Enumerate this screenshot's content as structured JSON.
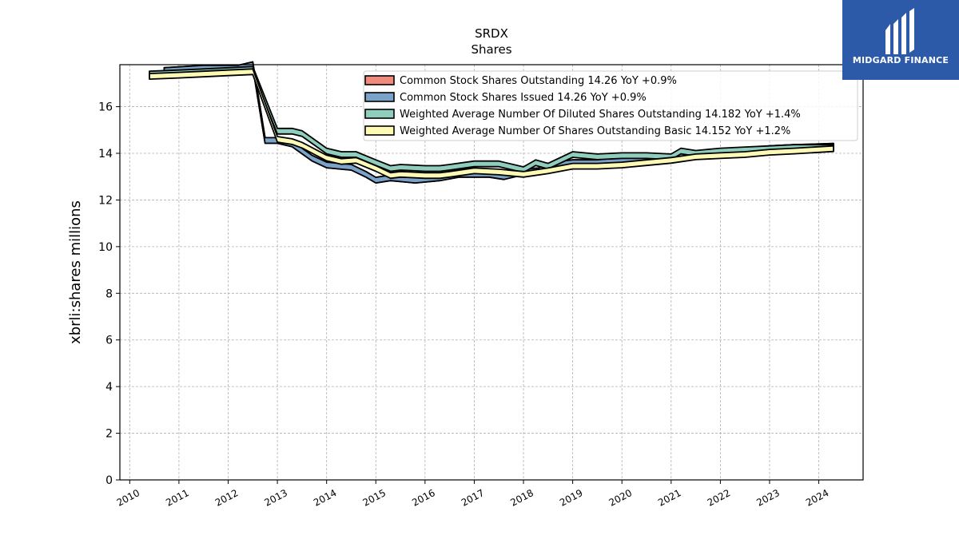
{
  "brand": {
    "name": "MIDGARD FINANCE",
    "bg": "#2d5aa8"
  },
  "chart_data": {
    "type": "area",
    "title": "SRDX",
    "subtitle": "Shares",
    "xlabel": "",
    "ylabel": "xbrli:shares millions",
    "xlim": [
      2009.8,
      2024.9
    ],
    "ylim": [
      0,
      17.8
    ],
    "x_ticks": [
      "2010",
      "2011",
      "2012",
      "2013",
      "2014",
      "2015",
      "2016",
      "2017",
      "2018",
      "2019",
      "2020",
      "2021",
      "2022",
      "2023",
      "2024"
    ],
    "y_ticks": [
      "0",
      "2",
      "4",
      "6",
      "8",
      "10",
      "12",
      "14",
      "16"
    ],
    "grid": true,
    "legend_position": "top-right",
    "series": [
      {
        "name": "Common Stock Shares Outstanding  14.26 YoY +0.9%",
        "color": "#f08a7e",
        "points": [
          [
            2010.7,
            17.55
          ],
          [
            2011.5,
            17.65
          ],
          [
            2012.2,
            17.65
          ],
          [
            2012.5,
            17.8
          ],
          [
            2012.75,
            14.55
          ],
          [
            2013.0,
            14.55
          ],
          [
            2013.3,
            14.4
          ],
          [
            2013.7,
            13.8
          ],
          [
            2014.0,
            13.5
          ],
          [
            2014.5,
            13.4
          ],
          [
            2014.8,
            13.1
          ],
          [
            2015.0,
            12.85
          ],
          [
            2015.3,
            12.95
          ],
          [
            2015.8,
            12.85
          ],
          [
            2016.3,
            12.95
          ],
          [
            2016.7,
            13.1
          ],
          [
            2017.3,
            13.1
          ],
          [
            2017.6,
            13.0
          ],
          [
            2018.0,
            13.2
          ],
          [
            2018.3,
            13.25
          ],
          [
            2018.6,
            13.5
          ],
          [
            2019.0,
            13.6
          ],
          [
            2019.5,
            13.6
          ],
          [
            2020.0,
            13.7
          ],
          [
            2020.5,
            13.75
          ],
          [
            2021.0,
            13.85
          ],
          [
            2021.5,
            13.95
          ],
          [
            2022.0,
            14.05
          ],
          [
            2022.5,
            14.1
          ],
          [
            2023.0,
            14.2
          ],
          [
            2023.5,
            14.25
          ],
          [
            2024.3,
            14.3
          ]
        ]
      },
      {
        "name": "Common Stock Shares Issued  14.26 YoY +0.9%",
        "color": "#7ba3c9",
        "points": [
          [
            2010.7,
            17.55
          ],
          [
            2011.5,
            17.65
          ],
          [
            2012.2,
            17.65
          ],
          [
            2012.5,
            17.8
          ],
          [
            2012.75,
            14.55
          ],
          [
            2013.0,
            14.55
          ],
          [
            2013.3,
            14.4
          ],
          [
            2013.7,
            13.8
          ],
          [
            2014.0,
            13.5
          ],
          [
            2014.5,
            13.4
          ],
          [
            2014.8,
            13.1
          ],
          [
            2015.0,
            12.85
          ],
          [
            2015.3,
            12.95
          ],
          [
            2015.8,
            12.85
          ],
          [
            2016.3,
            12.95
          ],
          [
            2016.7,
            13.1
          ],
          [
            2017.3,
            13.1
          ],
          [
            2017.6,
            13.0
          ],
          [
            2018.0,
            13.2
          ],
          [
            2018.3,
            13.25
          ],
          [
            2018.6,
            13.5
          ],
          [
            2019.0,
            13.6
          ],
          [
            2019.5,
            13.6
          ],
          [
            2020.0,
            13.7
          ],
          [
            2020.5,
            13.75
          ],
          [
            2021.0,
            13.85
          ],
          [
            2021.5,
            13.95
          ],
          [
            2022.0,
            14.05
          ],
          [
            2022.5,
            14.1
          ],
          [
            2023.0,
            14.2
          ],
          [
            2023.5,
            14.25
          ],
          [
            2024.3,
            14.3
          ]
        ]
      },
      {
        "name": "Weighted Average Number Of Diluted Shares Outstanding  14.182 YoY +1.4%",
        "color": "#8fcdbd",
        "points": [
          [
            2010.4,
            17.4
          ],
          [
            2011.0,
            17.45
          ],
          [
            2011.5,
            17.5
          ],
          [
            2012.0,
            17.55
          ],
          [
            2012.5,
            17.6
          ],
          [
            2013.0,
            14.95
          ],
          [
            2013.3,
            14.95
          ],
          [
            2013.5,
            14.85
          ],
          [
            2014.0,
            14.1
          ],
          [
            2014.3,
            13.95
          ],
          [
            2014.6,
            13.95
          ],
          [
            2015.0,
            13.6
          ],
          [
            2015.3,
            13.35
          ],
          [
            2015.5,
            13.4
          ],
          [
            2016.0,
            13.35
          ],
          [
            2016.3,
            13.35
          ],
          [
            2016.5,
            13.4
          ],
          [
            2017.0,
            13.55
          ],
          [
            2017.5,
            13.55
          ],
          [
            2018.0,
            13.3
          ],
          [
            2018.25,
            13.6
          ],
          [
            2018.5,
            13.45
          ],
          [
            2019.0,
            13.95
          ],
          [
            2019.5,
            13.85
          ],
          [
            2020.0,
            13.9
          ],
          [
            2020.5,
            13.9
          ],
          [
            2021.0,
            13.85
          ],
          [
            2021.2,
            14.1
          ],
          [
            2021.5,
            14.0
          ],
          [
            2022.0,
            14.1
          ],
          [
            2022.5,
            14.15
          ],
          [
            2023.0,
            14.2
          ],
          [
            2023.5,
            14.25
          ],
          [
            2024.3,
            14.25
          ]
        ]
      },
      {
        "name": "Weighted Average Number Of Shares Outstanding Basic  14.152 YoY +1.2%",
        "color": "#fdfab6",
        "points": [
          [
            2010.4,
            17.3
          ],
          [
            2011.0,
            17.35
          ],
          [
            2011.5,
            17.4
          ],
          [
            2012.0,
            17.45
          ],
          [
            2012.5,
            17.5
          ],
          [
            2013.0,
            14.6
          ],
          [
            2013.3,
            14.5
          ],
          [
            2013.5,
            14.35
          ],
          [
            2014.0,
            13.8
          ],
          [
            2014.3,
            13.65
          ],
          [
            2014.6,
            13.7
          ],
          [
            2015.0,
            13.35
          ],
          [
            2015.3,
            13.05
          ],
          [
            2015.5,
            13.1
          ],
          [
            2016.0,
            13.05
          ],
          [
            2016.3,
            13.05
          ],
          [
            2016.5,
            13.1
          ],
          [
            2017.0,
            13.25
          ],
          [
            2017.5,
            13.2
          ],
          [
            2018.0,
            13.1
          ],
          [
            2018.5,
            13.25
          ],
          [
            2019.0,
            13.45
          ],
          [
            2019.5,
            13.45
          ],
          [
            2020.0,
            13.5
          ],
          [
            2020.5,
            13.6
          ],
          [
            2021.0,
            13.7
          ],
          [
            2021.5,
            13.85
          ],
          [
            2022.0,
            13.9
          ],
          [
            2022.5,
            13.95
          ],
          [
            2023.0,
            14.05
          ],
          [
            2023.5,
            14.1
          ],
          [
            2024.3,
            14.2
          ]
        ]
      }
    ]
  }
}
